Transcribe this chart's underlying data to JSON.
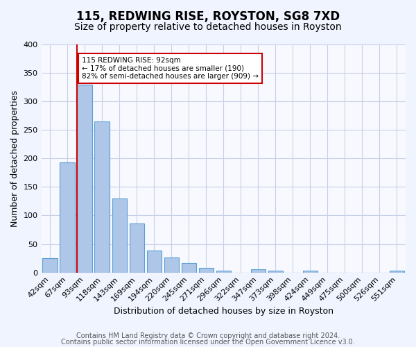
{
  "title": "115, REDWING RISE, ROYSTON, SG8 7XD",
  "subtitle": "Size of property relative to detached houses in Royston",
  "xlabel": "Distribution of detached houses by size in Royston",
  "ylabel": "Number of detached properties",
  "categories": [
    "42sqm",
    "67sqm",
    "93sqm",
    "118sqm",
    "143sqm",
    "169sqm",
    "194sqm",
    "220sqm",
    "245sqm",
    "271sqm",
    "296sqm",
    "322sqm",
    "347sqm",
    "373sqm",
    "398sqm",
    "424sqm",
    "449sqm",
    "475sqm",
    "500sqm",
    "526sqm",
    "551sqm"
  ],
  "values": [
    25,
    193,
    330,
    265,
    130,
    86,
    39,
    26,
    16,
    8,
    3,
    0,
    5,
    3,
    0,
    3,
    0,
    0,
    0,
    0,
    3
  ],
  "bar_color": "#aec6e8",
  "bar_edge_color": "#5a9fd4",
  "marker_index": 2,
  "marker_color": "#cc0000",
  "annotation_text": "115 REDWING RISE: 92sqm\n← 17% of detached houses are smaller (190)\n82% of semi-detached houses are larger (909) →",
  "annotation_box_color": "#ffffff",
  "annotation_box_edge": "#cc0000",
  "ylim": [
    0,
    400
  ],
  "yticks": [
    0,
    50,
    100,
    150,
    200,
    250,
    300,
    350,
    400
  ],
  "footer1": "Contains HM Land Registry data © Crown copyright and database right 2024.",
  "footer2": "Contains public sector information licensed under the Open Government Licence v3.0.",
  "bg_color": "#f0f4ff",
  "plot_bg_color": "#f8f9ff",
  "grid_color": "#c8d0e8",
  "title_fontsize": 12,
  "subtitle_fontsize": 10,
  "axis_label_fontsize": 9,
  "tick_fontsize": 8,
  "footer_fontsize": 7
}
